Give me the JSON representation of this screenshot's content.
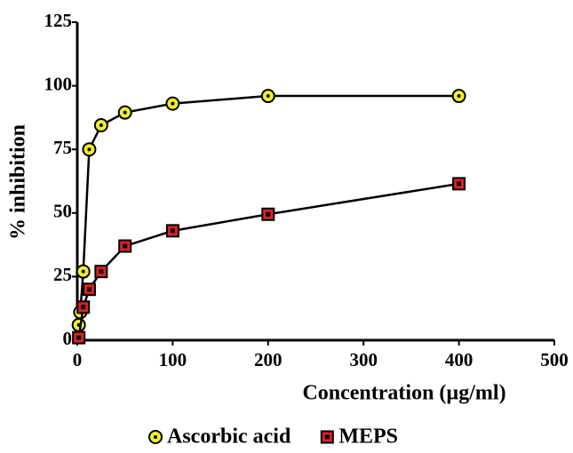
{
  "chart_data": {
    "type": "line",
    "x_label": "Concentration (µg/ml)",
    "y_label": "% inhibition",
    "xlim": [
      0,
      500
    ],
    "xticks": [
      0,
      100,
      200,
      300,
      400,
      500
    ],
    "ylim": [
      0,
      125
    ],
    "yticks": [
      0,
      25,
      50,
      75,
      100,
      125
    ],
    "legend": "bottom",
    "series": [
      {
        "name": "Ascorbic acid",
        "color": "#f2ee22",
        "marker": "circle",
        "x": [
          1.56,
          3.125,
          6.25,
          12.5,
          25,
          50,
          100,
          200,
          400
        ],
        "values": [
          6,
          11,
          27,
          75,
          84.5,
          89.5,
          93,
          96,
          96
        ]
      },
      {
        "name": "MEPS",
        "color": "#e02020",
        "marker": "square",
        "x": [
          1.56,
          6.25,
          12.5,
          25,
          50,
          100,
          200,
          400
        ],
        "values": [
          1,
          13,
          20,
          27,
          37,
          43,
          49.5,
          61.5
        ]
      }
    ]
  }
}
